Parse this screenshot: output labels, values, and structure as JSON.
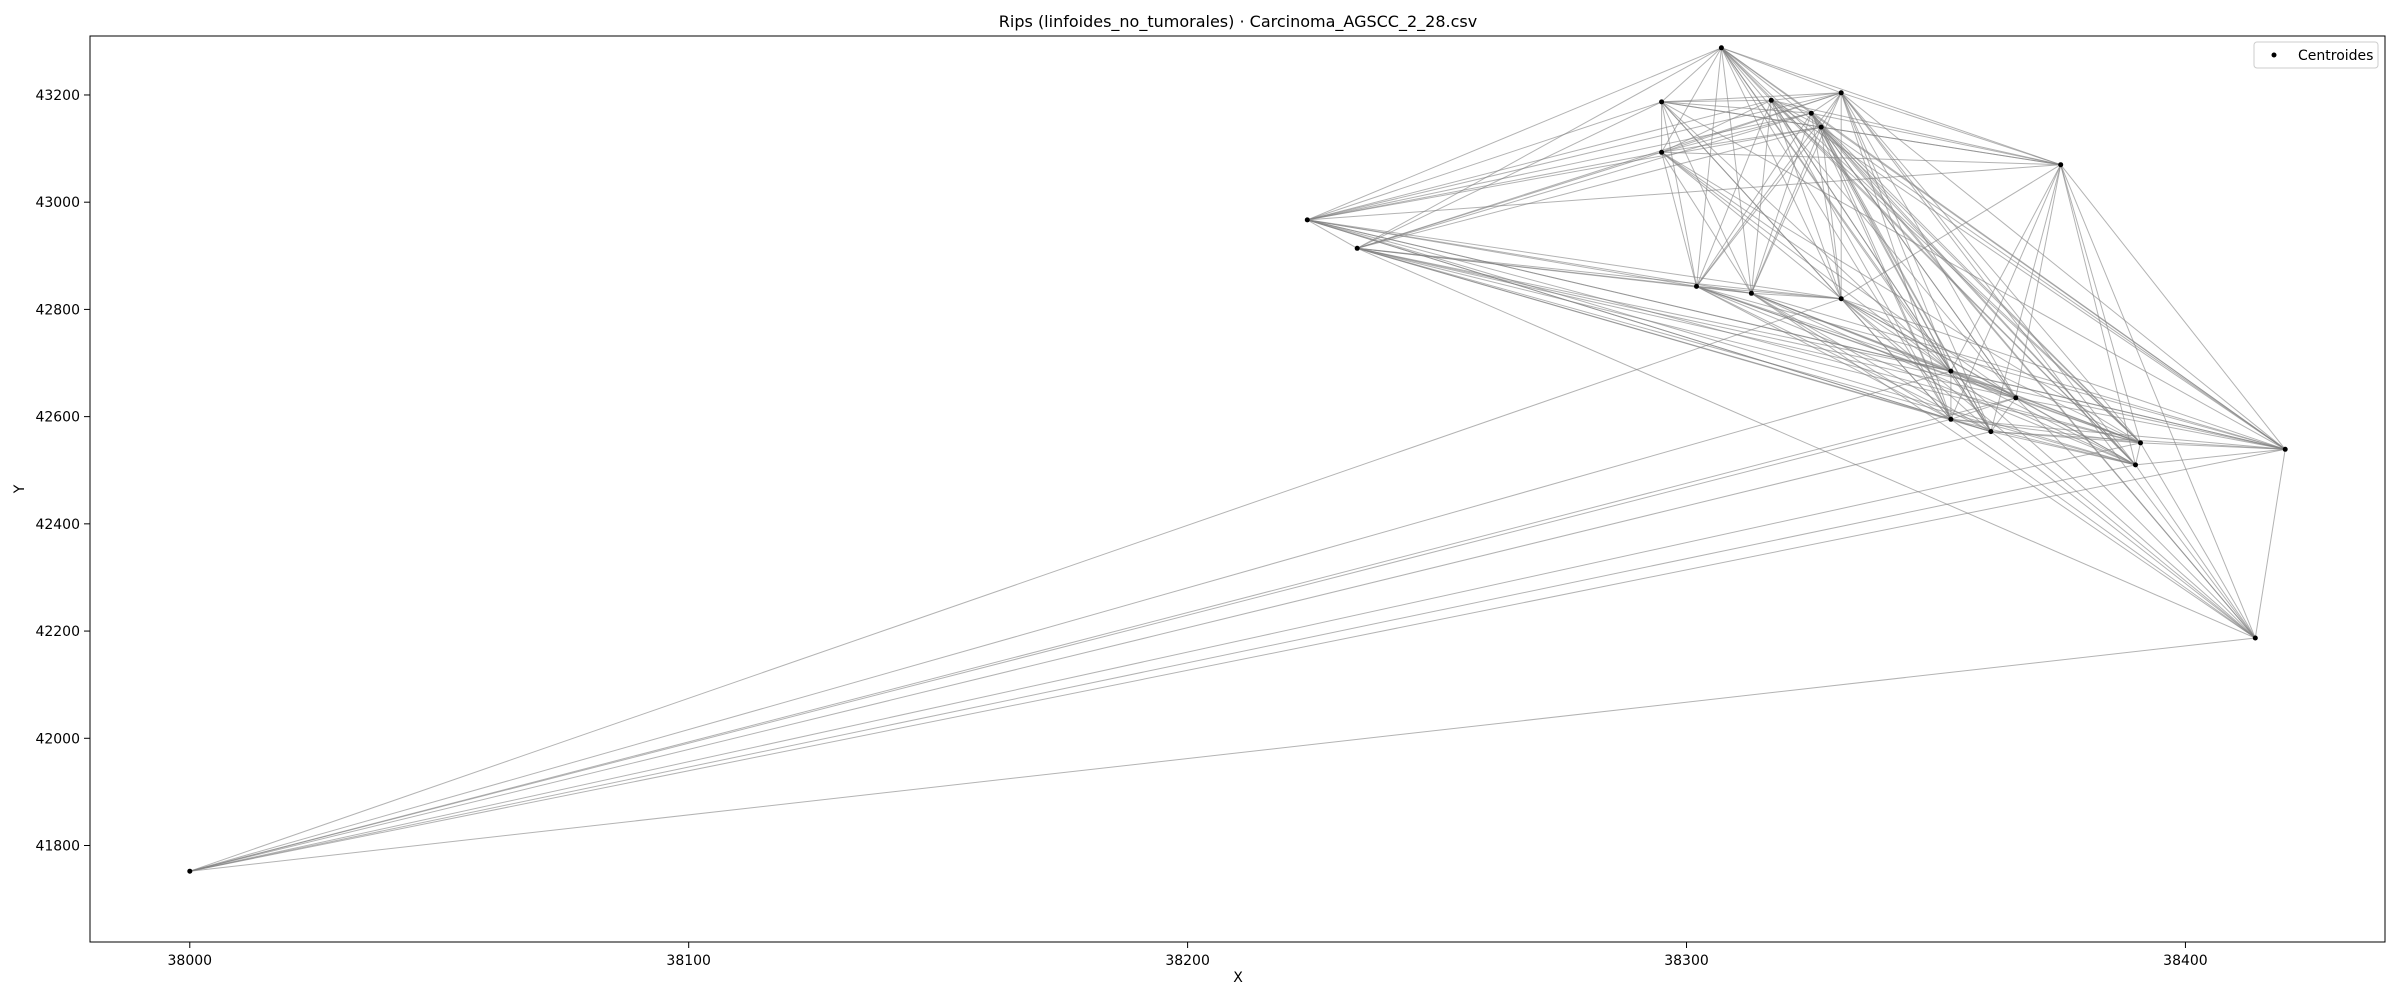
{
  "chart_data": {
    "type": "scatter",
    "title": "Rips (linfoides_no_tumorales) · Carcinoma_AGSCC_2_28.csv",
    "xlabel": "X",
    "ylabel": "Y",
    "xlim": [
      37980,
      38440
    ],
    "ylim": [
      41620,
      43310
    ],
    "xticks": [
      38000,
      38100,
      38200,
      38300,
      38400
    ],
    "yticks": [
      41800,
      42000,
      42200,
      42400,
      42600,
      42800,
      43000,
      43200
    ],
    "legend": {
      "position": "top-right",
      "entries": [
        "Centroides"
      ]
    },
    "series": [
      {
        "name": "Centroides",
        "points": [
          [
            38000,
            41752
          ],
          [
            38224,
            42967
          ],
          [
            38234,
            42914
          ],
          [
            38295,
            43187
          ],
          [
            38295,
            43093
          ],
          [
            38302,
            42843
          ],
          [
            38307,
            43288
          ],
          [
            38313,
            42830
          ],
          [
            38317,
            43190
          ],
          [
            38325,
            43166
          ],
          [
            38327,
            43140
          ],
          [
            38331,
            43204
          ],
          [
            38331,
            42820
          ],
          [
            38353,
            42685
          ],
          [
            38353,
            42595
          ],
          [
            38361,
            42572
          ],
          [
            38366,
            42635
          ],
          [
            38375,
            43070
          ],
          [
            38390,
            42510
          ],
          [
            38391,
            42551
          ],
          [
            38414,
            42187
          ],
          [
            38420,
            42539
          ]
        ]
      }
    ],
    "edges": [
      [
        0,
        15
      ],
      [
        0,
        16
      ],
      [
        0,
        14
      ],
      [
        0,
        13
      ],
      [
        0,
        18
      ],
      [
        0,
        19
      ],
      [
        0,
        21
      ],
      [
        0,
        20
      ],
      [
        0,
        12
      ],
      [
        1,
        2
      ],
      [
        1,
        3
      ],
      [
        1,
        4
      ],
      [
        1,
        5
      ],
      [
        1,
        6
      ],
      [
        1,
        7
      ],
      [
        1,
        8
      ],
      [
        1,
        9
      ],
      [
        1,
        10
      ],
      [
        1,
        11
      ],
      [
        1,
        12
      ],
      [
        1,
        13
      ],
      [
        1,
        14
      ],
      [
        1,
        15
      ],
      [
        1,
        17
      ],
      [
        1,
        18
      ],
      [
        1,
        19
      ],
      [
        1,
        21
      ],
      [
        2,
        3
      ],
      [
        2,
        4
      ],
      [
        2,
        5
      ],
      [
        2,
        6
      ],
      [
        2,
        7
      ],
      [
        2,
        9
      ],
      [
        2,
        10
      ],
      [
        2,
        11
      ],
      [
        2,
        12
      ],
      [
        2,
        13
      ],
      [
        2,
        14
      ],
      [
        2,
        15
      ],
      [
        2,
        16
      ],
      [
        2,
        18
      ],
      [
        2,
        19
      ],
      [
        2,
        20
      ],
      [
        2,
        21
      ],
      [
        3,
        4
      ],
      [
        3,
        5
      ],
      [
        3,
        6
      ],
      [
        3,
        7
      ],
      [
        3,
        8
      ],
      [
        3,
        9
      ],
      [
        3,
        10
      ],
      [
        3,
        11
      ],
      [
        3,
        12
      ],
      [
        3,
        13
      ],
      [
        3,
        14
      ],
      [
        3,
        17
      ],
      [
        3,
        21
      ],
      [
        4,
        5
      ],
      [
        4,
        6
      ],
      [
        4,
        7
      ],
      [
        4,
        8
      ],
      [
        4,
        9
      ],
      [
        4,
        10
      ],
      [
        4,
        11
      ],
      [
        4,
        12
      ],
      [
        4,
        13
      ],
      [
        4,
        16
      ],
      [
        4,
        17
      ],
      [
        4,
        19
      ],
      [
        5,
        6
      ],
      [
        5,
        7
      ],
      [
        5,
        8
      ],
      [
        5,
        9
      ],
      [
        5,
        10
      ],
      [
        5,
        11
      ],
      [
        5,
        12
      ],
      [
        5,
        13
      ],
      [
        5,
        14
      ],
      [
        5,
        15
      ],
      [
        5,
        16
      ],
      [
        5,
        18
      ],
      [
        5,
        19
      ],
      [
        5,
        21
      ],
      [
        6,
        7
      ],
      [
        6,
        8
      ],
      [
        6,
        9
      ],
      [
        6,
        10
      ],
      [
        6,
        11
      ],
      [
        6,
        12
      ],
      [
        6,
        13
      ],
      [
        6,
        14
      ],
      [
        6,
        15
      ],
      [
        6,
        16
      ],
      [
        6,
        17
      ],
      [
        6,
        18
      ],
      [
        6,
        19
      ],
      [
        6,
        21
      ],
      [
        7,
        8
      ],
      [
        7,
        9
      ],
      [
        7,
        10
      ],
      [
        7,
        11
      ],
      [
        7,
        12
      ],
      [
        7,
        13
      ],
      [
        7,
        14
      ],
      [
        7,
        15
      ],
      [
        7,
        16
      ],
      [
        7,
        18
      ],
      [
        7,
        19
      ],
      [
        7,
        20
      ],
      [
        7,
        21
      ],
      [
        8,
        9
      ],
      [
        8,
        10
      ],
      [
        8,
        11
      ],
      [
        8,
        12
      ],
      [
        8,
        13
      ],
      [
        8,
        14
      ],
      [
        8,
        15
      ],
      [
        8,
        17
      ],
      [
        8,
        18
      ],
      [
        8,
        19
      ],
      [
        8,
        21
      ],
      [
        9,
        10
      ],
      [
        9,
        11
      ],
      [
        9,
        12
      ],
      [
        9,
        13
      ],
      [
        9,
        14
      ],
      [
        9,
        15
      ],
      [
        9,
        16
      ],
      [
        9,
        17
      ],
      [
        9,
        18
      ],
      [
        9,
        19
      ],
      [
        9,
        20
      ],
      [
        9,
        21
      ],
      [
        10,
        11
      ],
      [
        10,
        12
      ],
      [
        10,
        13
      ],
      [
        10,
        14
      ],
      [
        10,
        15
      ],
      [
        10,
        16
      ],
      [
        10,
        17
      ],
      [
        10,
        18
      ],
      [
        10,
        19
      ],
      [
        10,
        20
      ],
      [
        10,
        21
      ],
      [
        11,
        12
      ],
      [
        11,
        13
      ],
      [
        11,
        14
      ],
      [
        11,
        15
      ],
      [
        11,
        16
      ],
      [
        11,
        17
      ],
      [
        11,
        18
      ],
      [
        11,
        19
      ],
      [
        11,
        20
      ],
      [
        11,
        21
      ],
      [
        12,
        13
      ],
      [
        12,
        14
      ],
      [
        12,
        15
      ],
      [
        12,
        16
      ],
      [
        12,
        17
      ],
      [
        12,
        18
      ],
      [
        12,
        19
      ],
      [
        12,
        20
      ],
      [
        12,
        21
      ],
      [
        13,
        14
      ],
      [
        13,
        15
      ],
      [
        13,
        16
      ],
      [
        13,
        17
      ],
      [
        13,
        18
      ],
      [
        13,
        19
      ],
      [
        13,
        20
      ],
      [
        13,
        21
      ],
      [
        14,
        15
      ],
      [
        14,
        16
      ],
      [
        14,
        17
      ],
      [
        14,
        18
      ],
      [
        14,
        19
      ],
      [
        14,
        20
      ],
      [
        14,
        21
      ],
      [
        15,
        16
      ],
      [
        15,
        17
      ],
      [
        15,
        18
      ],
      [
        15,
        19
      ],
      [
        15,
        20
      ],
      [
        15,
        21
      ],
      [
        16,
        17
      ],
      [
        16,
        18
      ],
      [
        16,
        19
      ],
      [
        16,
        20
      ],
      [
        16,
        21
      ],
      [
        17,
        18
      ],
      [
        17,
        19
      ],
      [
        17,
        20
      ],
      [
        17,
        21
      ],
      [
        18,
        19
      ],
      [
        18,
        20
      ],
      [
        18,
        21
      ],
      [
        19,
        20
      ],
      [
        19,
        21
      ],
      [
        20,
        21
      ]
    ]
  }
}
